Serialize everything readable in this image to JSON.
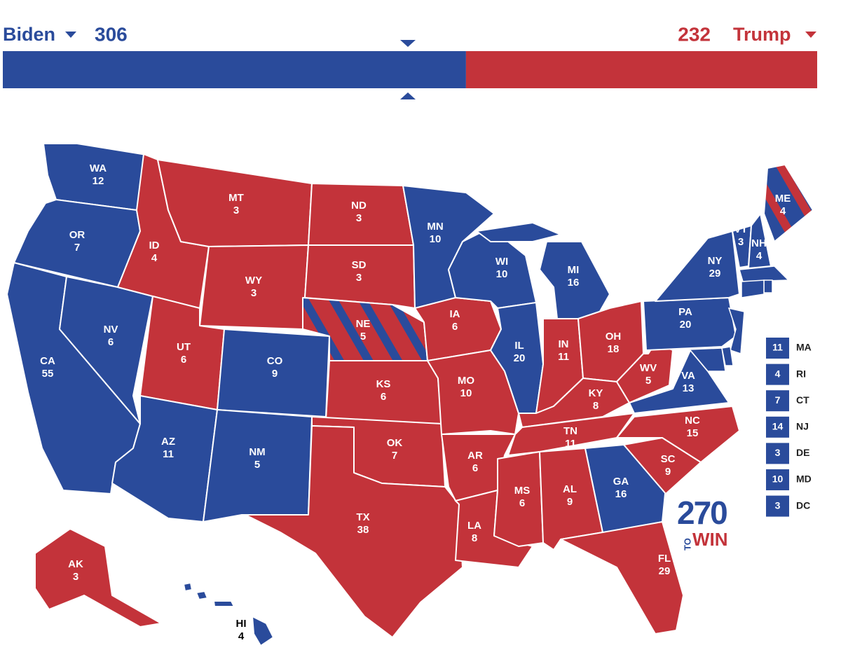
{
  "header": {
    "left": {
      "name": "Biden",
      "votes": 306,
      "color": "#2a4b9b"
    },
    "right": {
      "name": "Trump",
      "votes": 232,
      "color": "#c3333a"
    }
  },
  "states": [
    {
      "abbr": "WA",
      "votes": 12,
      "color": "#2a4b9b"
    },
    {
      "abbr": "OR",
      "votes": 7,
      "color": "#2a4b9b"
    },
    {
      "abbr": "CA",
      "votes": 55,
      "color": "#2a4b9b"
    },
    {
      "abbr": "NV",
      "votes": 6,
      "color": "#2a4b9b"
    },
    {
      "abbr": "ID",
      "votes": 4,
      "color": "#c3333a"
    },
    {
      "abbr": "MT",
      "votes": 3,
      "color": "#c3333a"
    },
    {
      "abbr": "WY",
      "votes": 3,
      "color": "#c3333a"
    },
    {
      "abbr": "UT",
      "votes": 6,
      "color": "#c3333a"
    },
    {
      "abbr": "CO",
      "votes": 9,
      "color": "#2a4b9b"
    },
    {
      "abbr": "AZ",
      "votes": 11,
      "color": "#2a4b9b"
    },
    {
      "abbr": "NM",
      "votes": 5,
      "color": "#2a4b9b"
    },
    {
      "abbr": "ND",
      "votes": 3,
      "color": "#c3333a"
    },
    {
      "abbr": "SD",
      "votes": 3,
      "color": "#c3333a"
    },
    {
      "abbr": "NE",
      "votes": 5,
      "color": "#c3333a",
      "stripe": "#2a4b9b"
    },
    {
      "abbr": "KS",
      "votes": 6,
      "color": "#c3333a"
    },
    {
      "abbr": "OK",
      "votes": 7,
      "color": "#c3333a"
    },
    {
      "abbr": "TX",
      "votes": 38,
      "color": "#c3333a"
    },
    {
      "abbr": "MN",
      "votes": 10,
      "color": "#2a4b9b"
    },
    {
      "abbr": "IA",
      "votes": 6,
      "color": "#c3333a"
    },
    {
      "abbr": "MO",
      "votes": 10,
      "color": "#c3333a"
    },
    {
      "abbr": "AR",
      "votes": 6,
      "color": "#c3333a"
    },
    {
      "abbr": "LA",
      "votes": 8,
      "color": "#c3333a"
    },
    {
      "abbr": "WI",
      "votes": 10,
      "color": "#2a4b9b"
    },
    {
      "abbr": "IL",
      "votes": 20,
      "color": "#2a4b9b"
    },
    {
      "abbr": "MI",
      "votes": 16,
      "color": "#2a4b9b"
    },
    {
      "abbr": "IN",
      "votes": 11,
      "color": "#c3333a"
    },
    {
      "abbr": "OH",
      "votes": 18,
      "color": "#c3333a"
    },
    {
      "abbr": "KY",
      "votes": 8,
      "color": "#c3333a"
    },
    {
      "abbr": "TN",
      "votes": 11,
      "color": "#c3333a"
    },
    {
      "abbr": "MS",
      "votes": 6,
      "color": "#c3333a"
    },
    {
      "abbr": "AL",
      "votes": 9,
      "color": "#c3333a"
    },
    {
      "abbr": "GA",
      "votes": 16,
      "color": "#2a4b9b"
    },
    {
      "abbr": "FL",
      "votes": 29,
      "color": "#c3333a"
    },
    {
      "abbr": "SC",
      "votes": 9,
      "color": "#c3333a"
    },
    {
      "abbr": "NC",
      "votes": 15,
      "color": "#c3333a"
    },
    {
      "abbr": "VA",
      "votes": 13,
      "color": "#2a4b9b"
    },
    {
      "abbr": "WV",
      "votes": 5,
      "color": "#c3333a"
    },
    {
      "abbr": "PA",
      "votes": 20,
      "color": "#2a4b9b"
    },
    {
      "abbr": "NY",
      "votes": 29,
      "color": "#2a4b9b"
    },
    {
      "abbr": "VT",
      "votes": 3,
      "color": "#2a4b9b"
    },
    {
      "abbr": "NH",
      "votes": 4,
      "color": "#2a4b9b"
    },
    {
      "abbr": "ME",
      "votes": 4,
      "color": "#2a4b9b",
      "stripe": "#c3333a"
    },
    {
      "abbr": "AK",
      "votes": 3,
      "color": "#c3333a"
    },
    {
      "abbr": "HI",
      "votes": 4,
      "color": "#2a4b9b"
    }
  ],
  "small_states": [
    {
      "abbr": "MA",
      "votes": 11,
      "color": "#2a4b9b"
    },
    {
      "abbr": "RI",
      "votes": 4,
      "color": "#2a4b9b"
    },
    {
      "abbr": "CT",
      "votes": 7,
      "color": "#2a4b9b"
    },
    {
      "abbr": "NJ",
      "votes": 14,
      "color": "#2a4b9b"
    },
    {
      "abbr": "DE",
      "votes": 3,
      "color": "#2a4b9b"
    },
    {
      "abbr": "MD",
      "votes": 10,
      "color": "#2a4b9b"
    },
    {
      "abbr": "DC",
      "votes": 3,
      "color": "#2a4b9b"
    }
  ],
  "logo": {
    "number": "270",
    "to": "TO",
    "win": "WIN"
  }
}
